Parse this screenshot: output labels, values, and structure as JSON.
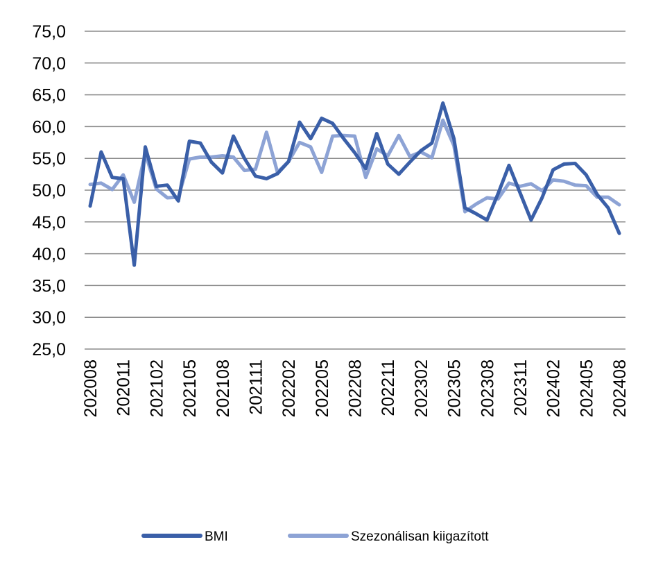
{
  "chart_data": {
    "type": "line",
    "title": "",
    "xlabel": "",
    "ylabel": "",
    "ylim": [
      25,
      75
    ],
    "y_ticks": [
      "25,0",
      "30,0",
      "35,0",
      "40,0",
      "45,0",
      "50,0",
      "55,0",
      "60,0",
      "65,0",
      "70,0",
      "75,0"
    ],
    "grid": true,
    "legend_position": "bottom",
    "x": [
      "202008",
      "202009",
      "202010",
      "202011",
      "202012",
      "202101",
      "202102",
      "202103",
      "202104",
      "202105",
      "202106",
      "202107",
      "202108",
      "202109",
      "202110",
      "202111",
      "202112",
      "202201",
      "202202",
      "202203",
      "202204",
      "202205",
      "202206",
      "202207",
      "202208",
      "202209",
      "202210",
      "202211",
      "202212",
      "202301",
      "202302",
      "202303",
      "202304",
      "202305",
      "202306",
      "202307",
      "202308",
      "202309",
      "202310",
      "202311",
      "202312",
      "202401",
      "202402",
      "202403",
      "202404",
      "202405",
      "202406",
      "202407",
      "202408"
    ],
    "x_tick_labels": [
      "202008",
      "202011",
      "202102",
      "202105",
      "202108",
      "202111",
      "202202",
      "202205",
      "202208",
      "202211",
      "202302",
      "202305",
      "202308",
      "202311",
      "202402",
      "202405",
      "202408"
    ],
    "series": [
      {
        "name": "BMI",
        "color": "#3a5fa8",
        "values": [
          47.5,
          56.0,
          52.0,
          51.8,
          38.2,
          56.8,
          50.6,
          50.8,
          48.3,
          57.7,
          57.4,
          54.4,
          52.7,
          58.5,
          55.0,
          52.2,
          51.8,
          52.6,
          54.5,
          60.7,
          58.1,
          61.3,
          60.5,
          58.1,
          55.9,
          53.4,
          58.9,
          54.1,
          52.5,
          54.4,
          56.2,
          57.4,
          63.7,
          58.1,
          47.2,
          46.3,
          45.3,
          49.4,
          53.9,
          49.6,
          45.3,
          48.8,
          53.2,
          54.1,
          54.2,
          52.4,
          49.3,
          47.2,
          43.2
        ]
      },
      {
        "name": "Szezonálisan kiigazított",
        "color": "#8da3d5",
        "values": [
          50.9,
          51.1,
          50.1,
          52.4,
          48.1,
          55.8,
          50.2,
          48.8,
          48.9,
          54.9,
          55.2,
          55.2,
          55.4,
          55.2,
          53.1,
          53.3,
          59.1,
          52.8,
          54.5,
          57.5,
          56.8,
          52.8,
          58.5,
          58.6,
          58.5,
          52.0,
          56.5,
          55.4,
          58.6,
          55.3,
          56.0,
          55.1,
          61.0,
          57.0,
          46.6,
          47.8,
          48.8,
          48.6,
          51.1,
          50.6,
          51.0,
          49.9,
          51.6,
          51.4,
          50.8,
          50.7,
          48.9,
          48.9,
          47.7
        ]
      }
    ]
  }
}
